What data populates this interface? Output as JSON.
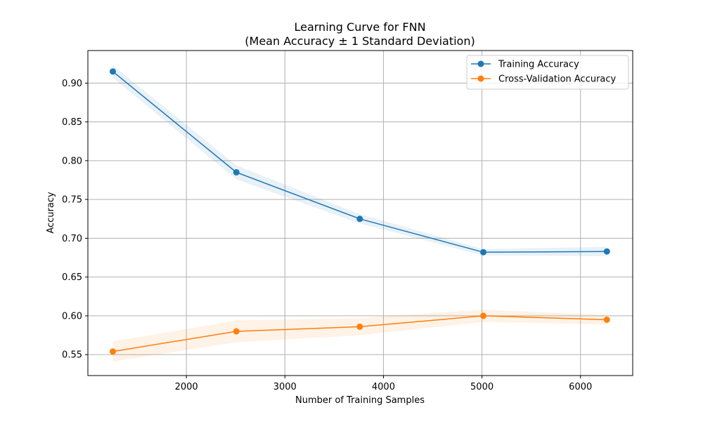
{
  "chart_data": {
    "type": "line",
    "title": "Learning Curve for FNN",
    "subtitle": "(Mean Accuracy ± 1 Standard Deviation)",
    "xlabel": "Number of Training Samples",
    "ylabel": "Accuracy",
    "xlim": [
      1000,
      6530
    ],
    "ylim": [
      0.523,
      0.942
    ],
    "xticks": [
      2000,
      3000,
      4000,
      5000,
      6000
    ],
    "yticks": [
      0.55,
      0.6,
      0.65,
      0.7,
      0.75,
      0.8,
      0.85,
      0.9
    ],
    "grid": true,
    "legend_position": "top-right",
    "x": [
      1253,
      2507,
      3760,
      5014,
      6268
    ],
    "series": [
      {
        "name": "Training Accuracy",
        "color": "#1f77b4",
        "values": [
          0.915,
          0.785,
          0.725,
          0.682,
          0.683
        ],
        "std": [
          0.008,
          0.009,
          0.006,
          0.004,
          0.006
        ]
      },
      {
        "name": "Cross-Validation Accuracy",
        "color": "#ff7f0e",
        "values": [
          0.554,
          0.58,
          0.586,
          0.6,
          0.595
        ],
        "std": [
          0.013,
          0.014,
          0.011,
          0.008,
          0.006
        ]
      }
    ]
  }
}
